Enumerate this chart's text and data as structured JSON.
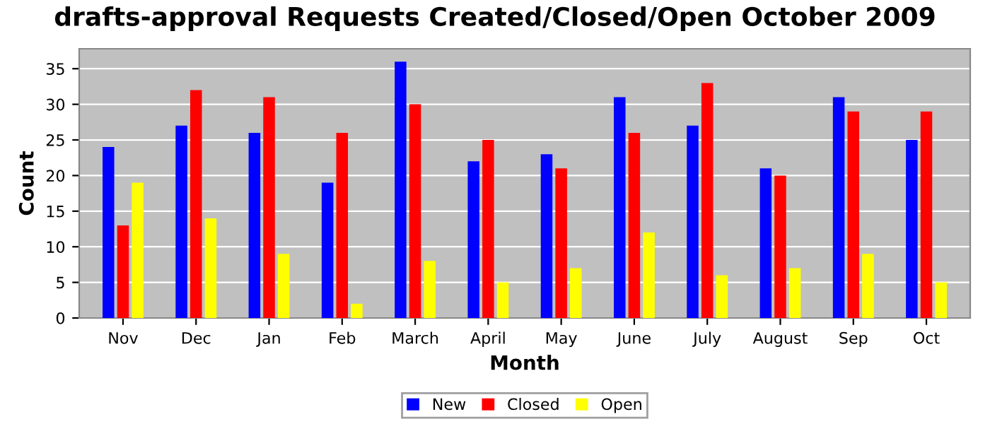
{
  "chart_data": {
    "type": "bar",
    "title": "drafts-approval Requests Created/Closed/Open October 2009",
    "xlabel": "Month",
    "ylabel": "Count",
    "categories": [
      "Nov",
      "Dec",
      "Jan",
      "Feb",
      "March",
      "April",
      "May",
      "June",
      "July",
      "August",
      "Sep",
      "Oct"
    ],
    "series": [
      {
        "name": "New",
        "color": "#0000ff",
        "values": [
          24,
          27,
          26,
          19,
          36,
          22,
          23,
          31,
          27,
          21,
          31,
          25
        ]
      },
      {
        "name": "Closed",
        "color": "#ff0000",
        "values": [
          13,
          32,
          31,
          26,
          30,
          25,
          21,
          26,
          33,
          20,
          29,
          29
        ]
      },
      {
        "name": "Open",
        "color": "#ffff00",
        "values": [
          19,
          14,
          9,
          2,
          8,
          5,
          7,
          12,
          6,
          7,
          9,
          5
        ]
      }
    ],
    "ylim": [
      0,
      37.8
    ],
    "yticks": [
      0,
      5,
      10,
      15,
      20,
      25,
      30,
      35
    ],
    "grid": "y",
    "legend": "bottom"
  }
}
